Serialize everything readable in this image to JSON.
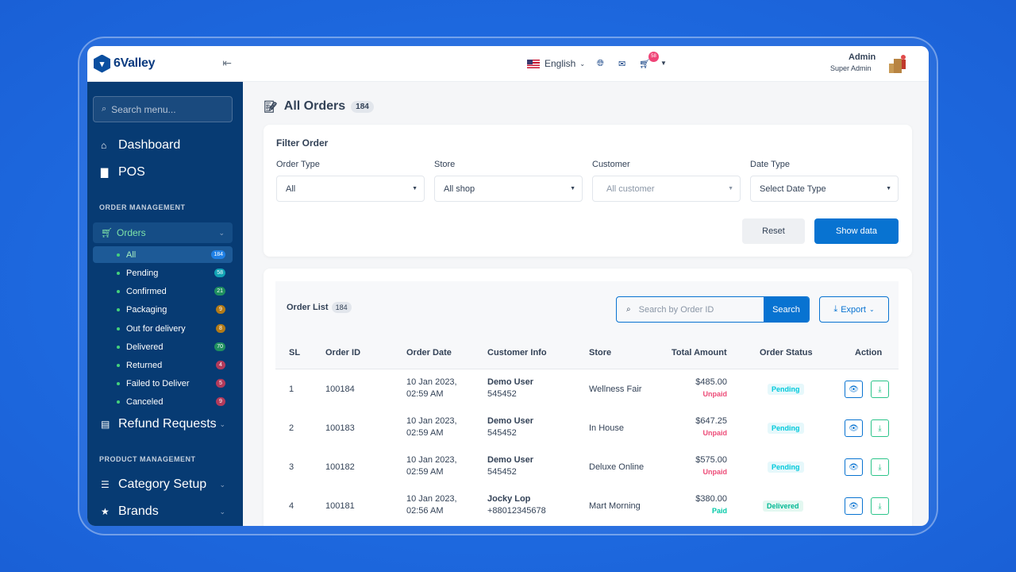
{
  "app": {
    "brand": "6Valley"
  },
  "sidebar": {
    "search_placeholder": "Search menu...",
    "top_items": [
      {
        "label": "Dashboard"
      },
      {
        "label": "POS"
      }
    ],
    "section_order": "ORDER MANAGEMENT",
    "orders_label": "Orders",
    "order_sub": [
      {
        "label": "All",
        "count": "184",
        "color": "#1f80e6"
      },
      {
        "label": "Pending",
        "count": "58",
        "color": "#12a3b4"
      },
      {
        "label": "Confirmed",
        "count": "21",
        "color": "#1f8f5f"
      },
      {
        "label": "Packaging",
        "count": "9",
        "color": "#b27a17"
      },
      {
        "label": "Out for delivery",
        "count": "8",
        "color": "#b27a17"
      },
      {
        "label": "Delivered",
        "count": "70",
        "color": "#1f8f5f"
      },
      {
        "label": "Returned",
        "count": "4",
        "color": "#b23a5b"
      },
      {
        "label": "Failed to Deliver",
        "count": "5",
        "color": "#b23a5b"
      },
      {
        "label": "Canceled",
        "count": "9",
        "color": "#b23a5b"
      }
    ],
    "refund_label": "Refund Requests",
    "section_product": "PRODUCT MANAGEMENT",
    "category_label": "Category Setup",
    "brands_label": "Brands"
  },
  "topbar": {
    "language": "English",
    "cart_count": "58",
    "admin_name": "Admin",
    "admin_role": "Super Admin"
  },
  "page": {
    "title": "All Orders",
    "count": "184"
  },
  "filter": {
    "title": "Filter Order",
    "fields": [
      {
        "label": "Order Type",
        "value": "All"
      },
      {
        "label": "Store",
        "value": "All shop"
      },
      {
        "label": "Customer",
        "value": "All customer"
      },
      {
        "label": "Date Type",
        "value": "Select Date Type"
      }
    ],
    "reset": "Reset",
    "show": "Show data"
  },
  "list": {
    "title": "Order List",
    "count": "184",
    "search_placeholder": "Search by Order ID",
    "search_button": "Search",
    "export": "Export",
    "columns": [
      "SL",
      "Order ID",
      "Order Date",
      "Customer Info",
      "Store",
      "Total Amount",
      "Order Status",
      "Action"
    ],
    "rows": [
      {
        "sl": "1",
        "id": "100184",
        "date1": "10 Jan 2023,",
        "date2": "02:59 AM",
        "cust": "Demo User",
        "phone": "545452",
        "store": "Wellness Fair",
        "amount": "$485.00",
        "pay": "Unpaid",
        "status": "Pending"
      },
      {
        "sl": "2",
        "id": "100183",
        "date1": "10 Jan 2023,",
        "date2": "02:59 AM",
        "cust": "Demo User",
        "phone": "545452",
        "store": "In House",
        "amount": "$647.25",
        "pay": "Unpaid",
        "status": "Pending"
      },
      {
        "sl": "3",
        "id": "100182",
        "date1": "10 Jan 2023,",
        "date2": "02:59 AM",
        "cust": "Demo User",
        "phone": "545452",
        "store": "Deluxe Online",
        "amount": "$575.00",
        "pay": "Unpaid",
        "status": "Pending"
      },
      {
        "sl": "4",
        "id": "100181",
        "date1": "10 Jan 2023,",
        "date2": "02:56 AM",
        "cust": "Jocky Lop",
        "phone": "+88012345678",
        "store": "Mart Morning",
        "amount": "$380.00",
        "pay": "Paid",
        "status": "Delivered"
      }
    ]
  },
  "colors": {
    "primary": "#0873d1",
    "sidebar": "#073b73",
    "unpaid": "#ed4c78",
    "paid": "#00c9a7",
    "pending": "#00c9db",
    "delivered": "#00c9a7"
  }
}
